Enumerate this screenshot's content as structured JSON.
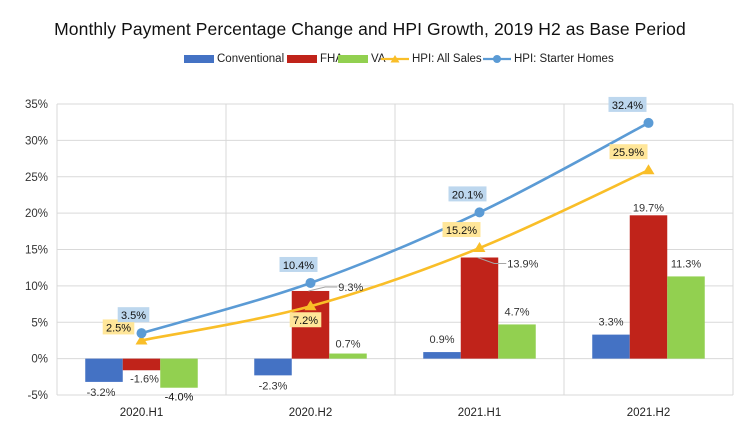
{
  "chart_data": {
    "type": "bar",
    "title": "Monthly Payment Percentage Change and HPI Growth, 2019 H2 as Base Period",
    "xlabel": "",
    "ylabel": "",
    "categories": [
      "2020.H1",
      "2020.H2",
      "2021.H1",
      "2021.H2"
    ],
    "ylim": [
      -5,
      35
    ],
    "yticks": [
      -5,
      0,
      5,
      10,
      15,
      20,
      25,
      30,
      35
    ],
    "ytick_labels": [
      "-5%",
      "0%",
      "5%",
      "10%",
      "15%",
      "20%",
      "25%",
      "30%",
      "35%"
    ],
    "grid": true,
    "legend_position": "top-center",
    "series": [
      {
        "name": "Conventional",
        "kind": "bar",
        "color": "#4472C4",
        "values": [
          -3.2,
          -2.3,
          0.9,
          3.3
        ],
        "labels": [
          "-3.2%",
          "-2.3%",
          "0.9%",
          "3.3%"
        ]
      },
      {
        "name": "FHA",
        "kind": "bar",
        "color": "#C0231A",
        "values": [
          -1.6,
          9.3,
          13.9,
          19.7
        ],
        "labels": [
          "-1.6%",
          "9.3%",
          "13.9%",
          "19.7%"
        ]
      },
      {
        "name": "VA",
        "kind": "bar",
        "color": "#92D050",
        "values": [
          -4.0,
          0.7,
          4.7,
          11.3
        ],
        "labels": [
          "-4.0%",
          "0.7%",
          "4.7%",
          "11.3%"
        ]
      },
      {
        "name": "HPI: All Sales",
        "kind": "line",
        "marker": "triangle",
        "color": "#F9BE28",
        "label_bg": "#FFE699",
        "values": [
          2.5,
          7.2,
          15.2,
          25.9
        ],
        "labels": [
          "2.5%",
          "7.2%",
          "15.2%",
          "25.9%"
        ]
      },
      {
        "name": "HPI: Starter Homes",
        "kind": "line",
        "marker": "circle",
        "color": "#5B9BD5",
        "label_bg": "#BDD7EE",
        "values": [
          3.5,
          10.4,
          20.1,
          32.4
        ],
        "labels": [
          "3.5%",
          "10.4%",
          "20.1%",
          "32.4%"
        ]
      }
    ]
  }
}
